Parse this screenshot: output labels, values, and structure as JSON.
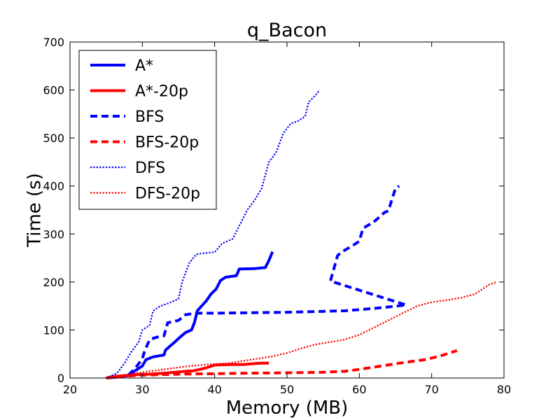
{
  "chart_data": {
    "type": "line",
    "title": "q_Bacon",
    "xlabel": "Memory (MB)",
    "ylabel": "Time (s)",
    "xlim": [
      20,
      80
    ],
    "ylim": [
      0,
      700
    ],
    "xticks": [
      20,
      30,
      40,
      50,
      60,
      70,
      80
    ],
    "yticks": [
      0,
      100,
      200,
      300,
      400,
      500,
      600,
      700
    ],
    "grid": false,
    "legend_position": "top-left",
    "series": [
      {
        "name": "A*",
        "color": "#0000ff",
        "style": "solid",
        "x": [
          25.0,
          26.5,
          28.0,
          29.0,
          30.0,
          30.5,
          31.5,
          33.0,
          33.2,
          33.8,
          34.5,
          35.2,
          36.0,
          36.8,
          37.2,
          37.6,
          38.2,
          38.8,
          39.5,
          40.2,
          40.8,
          41.5,
          43.0,
          43.4,
          45.5,
          47.0,
          47.5,
          48.0
        ],
        "y": [
          0,
          2,
          5,
          15,
          25,
          38,
          44,
          48,
          58,
          66,
          75,
          85,
          95,
          100,
          115,
          140,
          150,
          160,
          175,
          185,
          203,
          210,
          213,
          227,
          228,
          230,
          245,
          263
        ]
      },
      {
        "name": "A*-20p",
        "color": "#ff0000",
        "style": "solid",
        "x": [
          25.0,
          26.0,
          27.5,
          29.0,
          31.0,
          33.0,
          34.5,
          36.0,
          37.0,
          38.0,
          39.0,
          40.0,
          42.0,
          44.0,
          45.5,
          46.5,
          47.5
        ],
        "y": [
          0,
          3,
          5,
          7,
          8,
          10,
          12,
          14,
          15,
          18,
          22,
          27,
          28,
          28,
          30,
          31,
          31
        ]
      },
      {
        "name": "BFS",
        "color": "#0000ff",
        "style": "dashed",
        "x": [
          25.0,
          26.0,
          28.0,
          29.0,
          30.0,
          30.3,
          31.0,
          32.0,
          33.0,
          33.5,
          35.0,
          36.0,
          37.5,
          40.0,
          50.0,
          58.0,
          62.0,
          66.5,
          56.0,
          57.0,
          57.5,
          59.0,
          60.0,
          60.5,
          62.0,
          63.5,
          64.0,
          65.0,
          65.5
        ],
        "y": [
          0,
          2,
          5,
          20,
          40,
          55,
          80,
          85,
          88,
          115,
          120,
          132,
          135,
          135,
          137,
          140,
          145,
          152,
          202,
          255,
          262,
          275,
          285,
          312,
          325,
          345,
          348,
          395,
          400
        ]
      },
      {
        "name": "BFS-20p",
        "color": "#ff0000",
        "style": "dashed",
        "x": [
          25.0,
          27.0,
          30.0,
          35.0,
          40.0,
          45.0,
          50.0,
          55.0,
          58.0,
          60.0,
          63.0,
          66.0,
          69.0,
          71.0,
          73.5
        ],
        "y": [
          0,
          3,
          6,
          8,
          9,
          10,
          11,
          12,
          14,
          18,
          25,
          32,
          38,
          45,
          57
        ]
      },
      {
        "name": "DFS",
        "color": "#0000ff",
        "style": "dotted",
        "x": [
          25.0,
          26.5,
          27.5,
          28.5,
          29.5,
          30.0,
          31.0,
          31.5,
          32.5,
          33.5,
          35.0,
          35.5,
          36.5,
          37.5,
          38.5,
          40.0,
          41.0,
          42.5,
          43.5,
          44.5,
          45.5,
          46.5,
          47.5,
          48.5,
          49.5,
          50.5,
          51.5,
          52.5,
          53.0,
          54.0,
          54.5
        ],
        "y": [
          0,
          10,
          30,
          55,
          75,
          100,
          110,
          140,
          150,
          155,
          165,
          200,
          240,
          258,
          260,
          262,
          280,
          290,
          320,
          350,
          370,
          395,
          450,
          470,
          510,
          530,
          535,
          545,
          575,
          590,
          600
        ]
      },
      {
        "name": "DFS-20p",
        "color": "#ff0000",
        "style": "dotted",
        "x": [
          25.0,
          27.0,
          30.0,
          33.0,
          36.0,
          39.0,
          42.0,
          45.0,
          48.0,
          50.0,
          52.0,
          54.0,
          56.0,
          58.0,
          60.0,
          62.0,
          64.0,
          66.0,
          68.0,
          70.0,
          72.0,
          74.0,
          76.0,
          78.0,
          79.0
        ],
        "y": [
          0,
          5,
          12,
          18,
          24,
          28,
          31,
          38,
          45,
          52,
          62,
          70,
          75,
          80,
          90,
          105,
          120,
          135,
          150,
          158,
          162,
          167,
          175,
          195,
          200
        ]
      }
    ]
  }
}
